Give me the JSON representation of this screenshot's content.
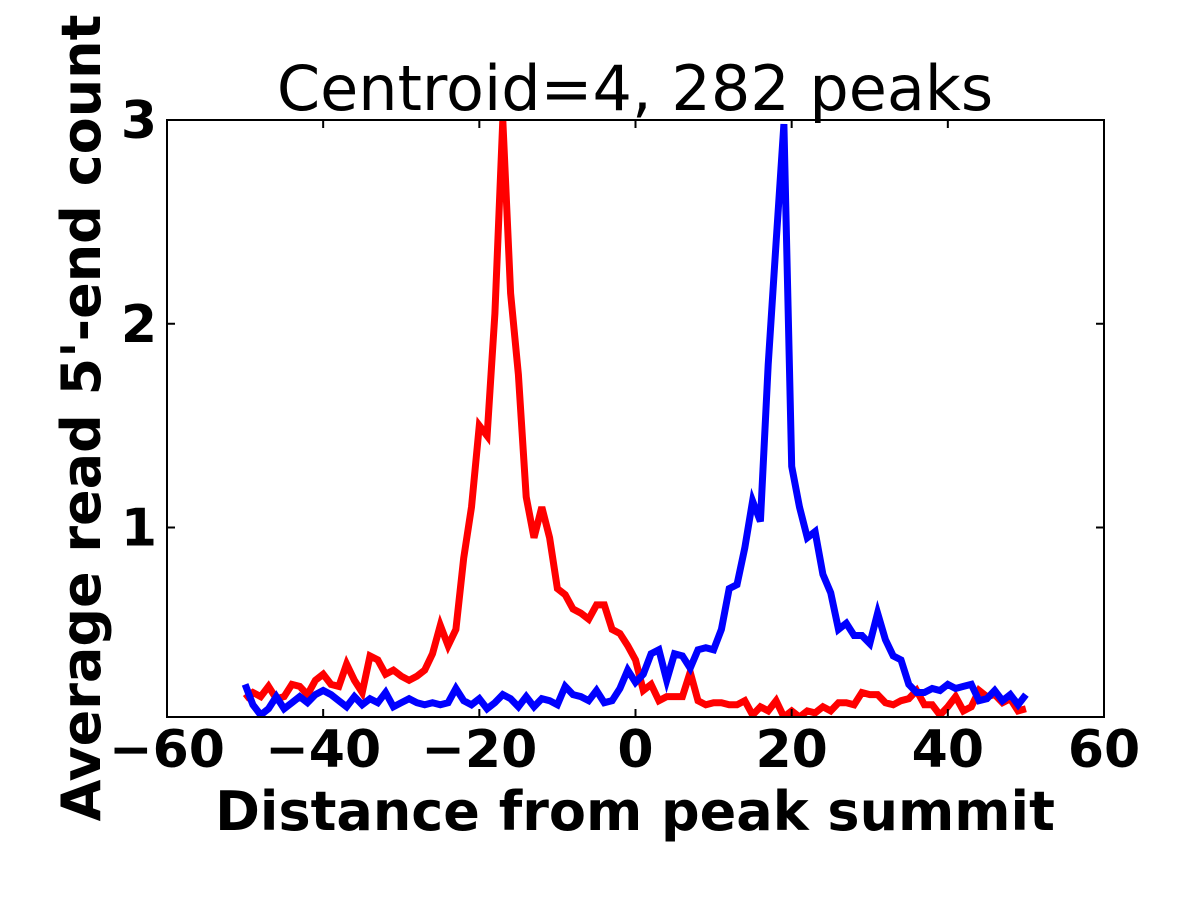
{
  "chart_data": {
    "type": "line",
    "title": "Centroid=4, 282 peaks",
    "xlabel": "Distance from peak summit",
    "ylabel": "Average read 5'-end count",
    "xlim": [
      -60,
      60
    ],
    "ylim": [
      0.07,
      3.0
    ],
    "xticks": [
      -60,
      -40,
      -20,
      0,
      20,
      40,
      60
    ],
    "xtick_labels": [
      "−60",
      "−40",
      "−20",
      "0",
      "20",
      "40",
      "60"
    ],
    "yticks": [
      1,
      2,
      3
    ],
    "ytick_labels": [
      "1",
      "2",
      "3"
    ],
    "grid": false,
    "legend": "none",
    "x": [
      -50,
      -49,
      -48,
      -47,
      -46,
      -45,
      -44,
      -43,
      -42,
      -41,
      -40,
      -39,
      -38,
      -37,
      -36,
      -35,
      -34,
      -33,
      -32,
      -31,
      -30,
      -29,
      -28,
      -27,
      -26,
      -25,
      -24,
      -23,
      -22,
      -21,
      -20,
      -19,
      -18,
      -17,
      -16,
      -15,
      -14,
      -13,
      -12,
      -11,
      -10,
      -9,
      -8,
      -7,
      -6,
      -5,
      -4,
      -3,
      -2,
      -1,
      0,
      1,
      2,
      3,
      4,
      5,
      6,
      7,
      8,
      9,
      10,
      11,
      12,
      13,
      14,
      15,
      16,
      17,
      18,
      19,
      20,
      21,
      22,
      23,
      24,
      25,
      26,
      27,
      28,
      29,
      30,
      31,
      32,
      33,
      34,
      35,
      36,
      37,
      38,
      39,
      40,
      41,
      42,
      43,
      44,
      45,
      46,
      47,
      48,
      49,
      50
    ],
    "series": [
      {
        "color": "#ff0000",
        "values": [
          0.16,
          0.19,
          0.17,
          0.22,
          0.16,
          0.17,
          0.23,
          0.22,
          0.18,
          0.25,
          0.28,
          0.23,
          0.22,
          0.33,
          0.25,
          0.19,
          0.37,
          0.35,
          0.28,
          0.3,
          0.27,
          0.25,
          0.27,
          0.3,
          0.38,
          0.52,
          0.42,
          0.5,
          0.85,
          1.1,
          1.5,
          1.45,
          2.05,
          3.0,
          2.15,
          1.75,
          1.15,
          0.95,
          1.1,
          0.95,
          0.7,
          0.67,
          0.6,
          0.58,
          0.55,
          0.62,
          0.62,
          0.5,
          0.48,
          0.42,
          0.35,
          0.2,
          0.23,
          0.15,
          0.17,
          0.17,
          0.17,
          0.29,
          0.15,
          0.13,
          0.14,
          0.14,
          0.13,
          0.13,
          0.15,
          0.08,
          0.12,
          0.1,
          0.15,
          0.07,
          0.1,
          0.07,
          0.1,
          0.09,
          0.12,
          0.1,
          0.14,
          0.14,
          0.13,
          0.19,
          0.18,
          0.18,
          0.14,
          0.13,
          0.15,
          0.16,
          0.2,
          0.13,
          0.13,
          0.08,
          0.12,
          0.17,
          0.1,
          0.12,
          0.2,
          0.17,
          0.18,
          0.14,
          0.16,
          0.1,
          0.11
        ]
      },
      {
        "color": "#0000ff",
        "values": [
          0.23,
          0.13,
          0.08,
          0.11,
          0.17,
          0.11,
          0.14,
          0.17,
          0.14,
          0.18,
          0.2,
          0.18,
          0.15,
          0.12,
          0.17,
          0.13,
          0.16,
          0.14,
          0.19,
          0.12,
          0.14,
          0.16,
          0.14,
          0.13,
          0.14,
          0.13,
          0.14,
          0.21,
          0.15,
          0.13,
          0.16,
          0.11,
          0.14,
          0.18,
          0.16,
          0.12,
          0.17,
          0.12,
          0.16,
          0.15,
          0.13,
          0.22,
          0.18,
          0.17,
          0.15,
          0.2,
          0.14,
          0.15,
          0.21,
          0.3,
          0.24,
          0.28,
          0.38,
          0.4,
          0.25,
          0.38,
          0.37,
          0.31,
          0.4,
          0.41,
          0.4,
          0.5,
          0.7,
          0.72,
          0.9,
          1.13,
          1.03,
          1.8,
          2.4,
          2.98,
          1.3,
          1.1,
          0.95,
          0.98,
          0.77,
          0.68,
          0.5,
          0.53,
          0.47,
          0.47,
          0.43,
          0.58,
          0.45,
          0.37,
          0.35,
          0.23,
          0.19,
          0.19,
          0.21,
          0.2,
          0.23,
          0.21,
          0.22,
          0.23,
          0.15,
          0.16,
          0.2,
          0.15,
          0.18,
          0.13,
          0.18
        ]
      }
    ]
  }
}
